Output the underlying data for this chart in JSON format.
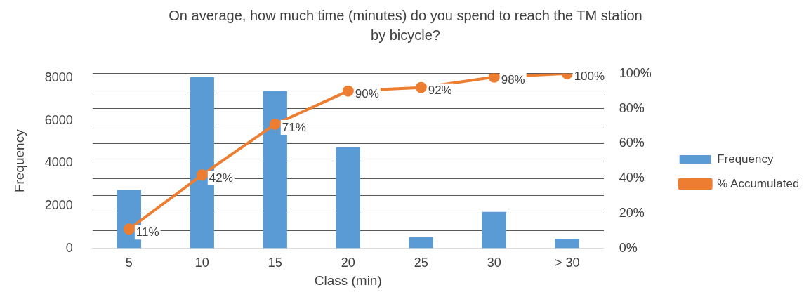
{
  "chart_data": {
    "type": "bar",
    "title": "On average, how much time (minutes) do you spend to reach the TM station by bicycle?",
    "xlabel": "Class (min)",
    "ylabel": "Frequency",
    "categories": [
      "5",
      "10",
      "15",
      "20",
      "25",
      "30",
      "> 30"
    ],
    "series": [
      {
        "name": "Frequency",
        "color": "#5b9bd5",
        "values": [
          2740,
          8030,
          7390,
          4740,
          520,
          1710,
          450
        ]
      },
      {
        "name": "% Accumulated",
        "type": "line",
        "axis": "y2",
        "color": "#ed7d31",
        "marker": "circle",
        "values": [
          11,
          42,
          71,
          90,
          92,
          98,
          100
        ],
        "value_labels": [
          "11%",
          "42%",
          "71%",
          "90%",
          "92%",
          "98%",
          "100%"
        ]
      }
    ],
    "ylim": [
      0,
      8200
    ],
    "yticks": [
      0,
      2000,
      4000,
      6000,
      8000
    ],
    "y2lim": [
      0,
      100
    ],
    "y2ticks": [
      {
        "value": 0,
        "label": "0%"
      },
      {
        "value": 10,
        "label": null
      },
      {
        "value": 20,
        "label": "20%"
      },
      {
        "value": 30,
        "label": null
      },
      {
        "value": 40,
        "label": "40%"
      },
      {
        "value": 50,
        "label": null
      },
      {
        "value": 60,
        "label": "60%"
      },
      {
        "value": 70,
        "label": null
      },
      {
        "value": 80,
        "label": "80%"
      },
      {
        "value": 90,
        "label": null
      },
      {
        "value": 100,
        "label": "100%"
      }
    ],
    "grid": "y2",
    "legend": "right"
  }
}
